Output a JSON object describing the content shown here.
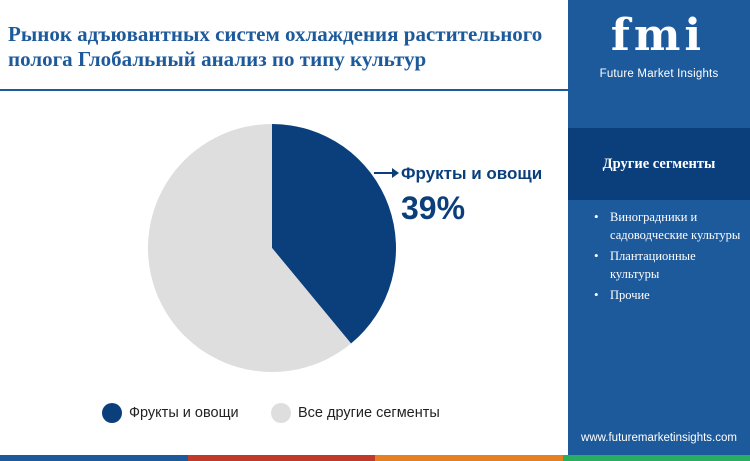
{
  "title": "Рынок адъювантных систем охлаждения растительного полога Глобальный анализ по типу культур",
  "chart_data": {
    "type": "pie",
    "categories": [
      "Фрукты и овощи",
      "Все другие сегменты"
    ],
    "values": [
      39,
      61
    ],
    "colors": [
      "#0b3f7c",
      "#dedede"
    ],
    "legend_position": "bottom",
    "callout": {
      "label": "Фрукты и овощи",
      "value": "39%"
    }
  },
  "legend": [
    {
      "label": "Фрукты и овощи",
      "color": "#0b3f7c"
    },
    {
      "label": "Все другие сегменты",
      "color": "#dedede"
    }
  ],
  "sidebar": {
    "logo_mark": "fmi",
    "logo_text": "Future Market Insights",
    "heading": "Другие сегменты",
    "segments": [
      "Виноградники и садоводческие культуры",
      "Плантационные культуры",
      "Прочие"
    ],
    "website": "www.futuremarketinsights.com"
  },
  "colors": {
    "brand_blue": "#1d5a9b",
    "dark_blue": "#0b3f7c",
    "bottom_bar": [
      "#1d5a9b",
      "#c0392b",
      "#e67e22",
      "#27ae60"
    ]
  }
}
